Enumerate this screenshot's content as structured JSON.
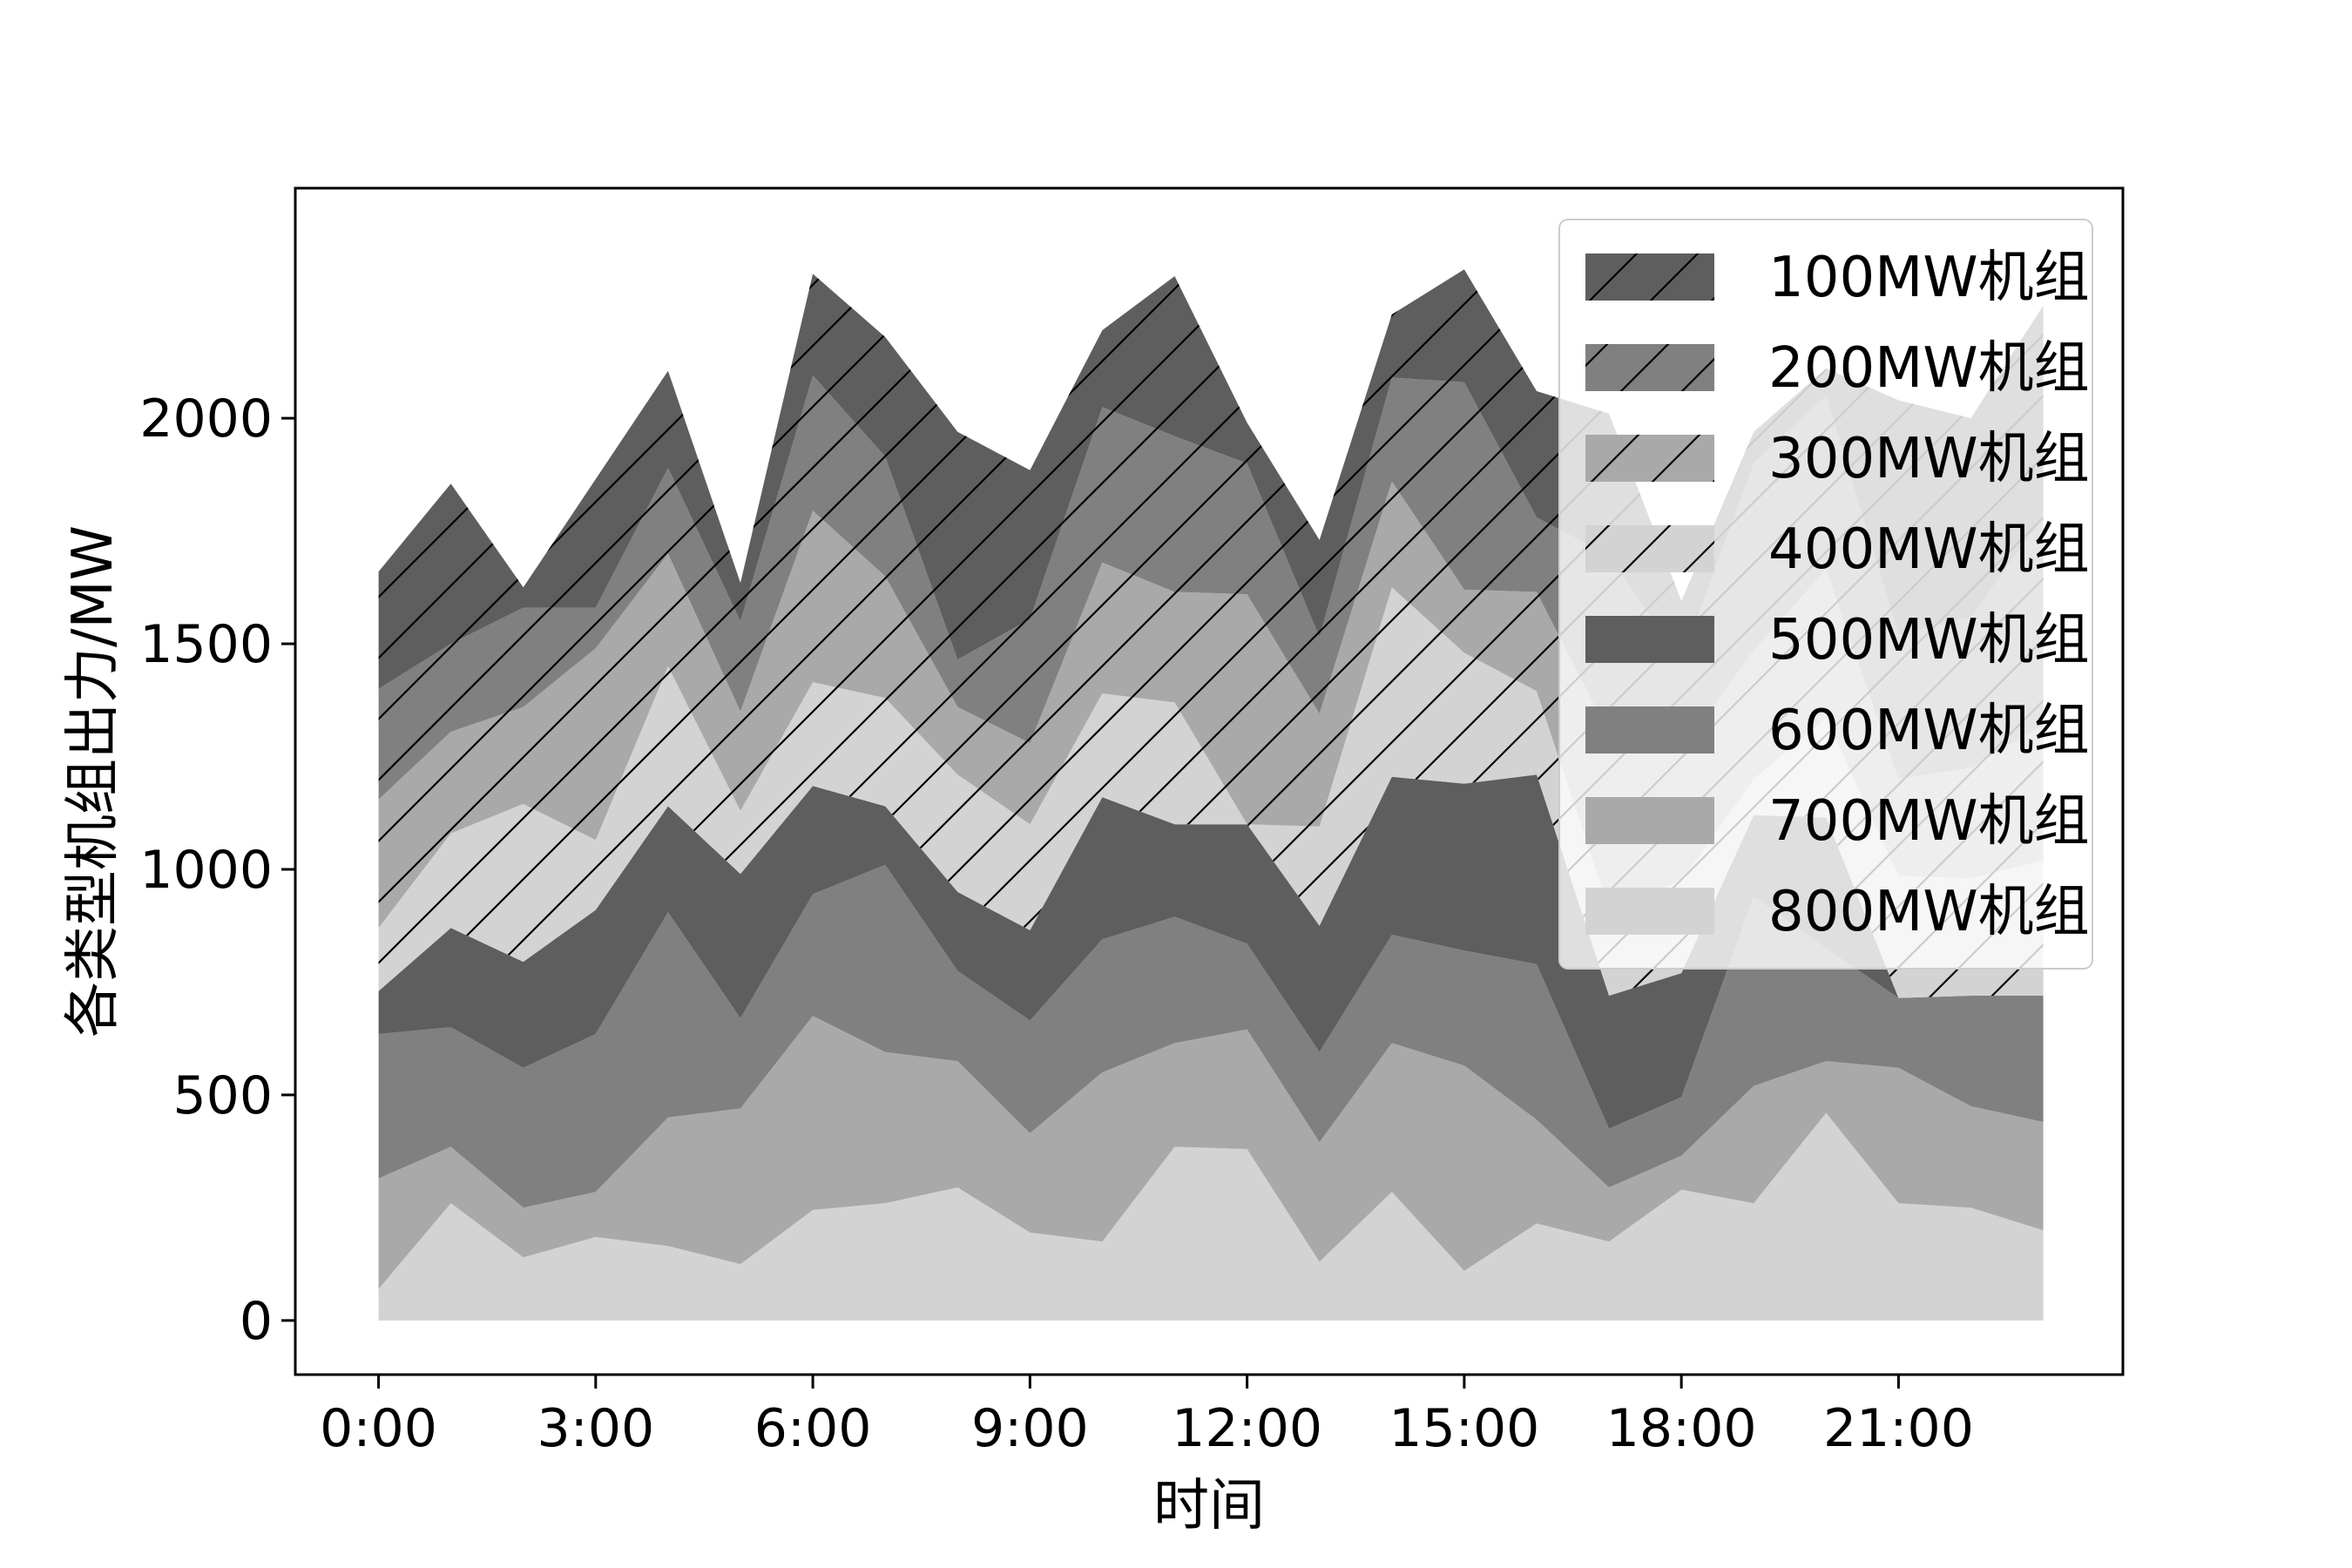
{
  "chart_data": {
    "type": "area",
    "stacked": true,
    "xlabel": "时间",
    "ylabel": "各类型机组出力/MW",
    "x_tick_labels": [
      "0:00",
      "3:00",
      "6:00",
      "9:00",
      "12:00",
      "15:00",
      "18:00",
      "21:00"
    ],
    "x_tick_hours": [
      0,
      3,
      6,
      9,
      12,
      15,
      18,
      21
    ],
    "x": [
      0,
      1,
      2,
      3,
      4,
      5,
      6,
      7,
      8,
      9,
      10,
      11,
      12,
      13,
      14,
      15,
      16,
      17,
      18,
      19,
      20,
      21,
      22,
      23
    ],
    "xlim": [
      -1.15,
      24.1
    ],
    "ylim": [
      -120,
      2510
    ],
    "yticks": [
      0,
      500,
      1000,
      1500,
      2000
    ],
    "grid": false,
    "legend_position": "top-right",
    "series": [
      {
        "name": "800MW机组",
        "color": "#d3d3d3",
        "hatch": false,
        "values": [
          70,
          260,
          140,
          185,
          165,
          125,
          245,
          260,
          295,
          195,
          175,
          385,
          380,
          130,
          285,
          110,
          215,
          175,
          290,
          260,
          460,
          260,
          250,
          200
        ]
      },
      {
        "name": "700MW机组",
        "color": "#a9a9a9",
        "hatch": false,
        "values": [
          245,
          125,
          110,
          100,
          285,
          345,
          430,
          335,
          280,
          220,
          375,
          230,
          265,
          265,
          330,
          455,
          230,
          120,
          75,
          260,
          115,
          300,
          225,
          240
        ]
      },
      {
        "name": "600MW机组",
        "color": "#808080",
        "hatch": false,
        "values": [
          320,
          265,
          310,
          350,
          455,
          200,
          270,
          415,
          200,
          250,
          295,
          280,
          190,
          200,
          240,
          255,
          345,
          130,
          130,
          420,
          250,
          155,
          245,
          280
        ]
      },
      {
        "name": "500MW机组",
        "color": "#5e5e5e",
        "hatch": false,
        "values": [
          95,
          220,
          235,
          275,
          235,
          320,
          240,
          130,
          175,
          200,
          315,
          205,
          265,
          280,
          350,
          370,
          420,
          295,
          275,
          180,
          290,
          0,
          0,
          0
        ]
      },
      {
        "name": "400MW机组",
        "color": "#d3d3d3",
        "hatch": true,
        "values": [
          140,
          210,
          350,
          155,
          310,
          140,
          230,
          240,
          260,
          235,
          230,
          270,
          0,
          220,
          420,
          290,
          185,
          190,
          205,
          80,
          220,
          270,
          260,
          300
        ]
      },
      {
        "name": "300MW机组",
        "color": "#a9a9a9",
        "hatch": true,
        "values": [
          285,
          225,
          215,
          425,
          250,
          220,
          380,
          270,
          150,
          180,
          290,
          245,
          510,
          250,
          235,
          140,
          220,
          390,
          290,
          285,
          330,
          215,
          245,
          300
        ]
      },
      {
        "name": "200MW机组",
        "color": "#808080",
        "hatch": true,
        "values": [
          245,
          195,
          220,
          90,
          190,
          200,
          300,
          265,
          105,
          275,
          345,
          345,
          290,
          170,
          230,
          460,
          165,
          395,
          195,
          415,
          385,
          320,
          335,
          460
        ]
      },
      {
        "name": "100MW机组",
        "color": "#5e5e5e",
        "hatch": true,
        "values": [
          260,
          355,
          45,
          285,
          215,
          85,
          225,
          265,
          505,
          330,
          170,
          355,
          90,
          215,
          140,
          250,
          280,
          315,
          135,
          70,
          60,
          520,
          440,
          470
        ]
      }
    ]
  }
}
